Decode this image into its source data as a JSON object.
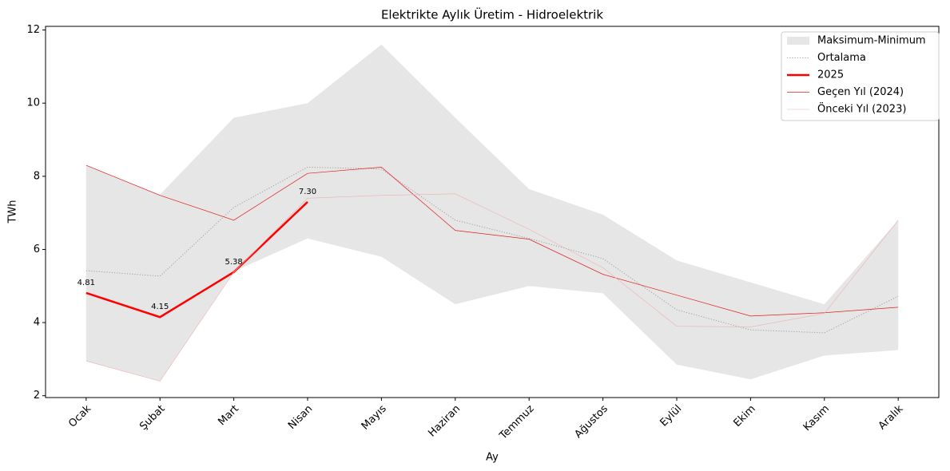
{
  "chart_data": {
    "type": "line",
    "title": "Elektrikte Aylık Üretim - Hidroelektrik",
    "xlabel": "Ay",
    "ylabel": "TWh",
    "categories": [
      "Ocak",
      "Şubat",
      "Mart",
      "Nisan",
      "Mayıs",
      "Haziran",
      "Temmuz",
      "Ağustos",
      "Eylül",
      "Ekim",
      "Kasım",
      "Aralık"
    ],
    "band": {
      "name": "Maksimum-Minimum",
      "color": "#e6e6e6",
      "upper": [
        8.3,
        7.5,
        9.6,
        10.0,
        11.6,
        9.6,
        7.65,
        6.95,
        5.7,
        5.1,
        4.5,
        6.8
      ],
      "lower": [
        2.95,
        2.4,
        5.4,
        6.3,
        5.8,
        4.5,
        5.0,
        4.8,
        2.85,
        2.45,
        3.1,
        3.25
      ]
    },
    "series": [
      {
        "name": "Ortalama",
        "color": "#a0a0a0",
        "linestyle": "dotted",
        "linewidth": 1,
        "values": [
          5.42,
          5.27,
          7.15,
          8.25,
          8.2,
          6.8,
          6.3,
          5.75,
          4.35,
          3.8,
          3.72,
          4.72
        ]
      },
      {
        "name": "2025",
        "color": "#ff0000",
        "linestyle": "solid",
        "linewidth": 2.5,
        "values": [
          4.81,
          4.15,
          5.38,
          7.3,
          null,
          null,
          null,
          null,
          null,
          null,
          null,
          null
        ],
        "value_labels": [
          "4.81",
          "4.15",
          "5.38",
          "7.30",
          null,
          null,
          null,
          null,
          null,
          null,
          null,
          null
        ]
      },
      {
        "name": "Geçen Yıl (2024)",
        "color": "#e02020",
        "linestyle": "solid",
        "linewidth": 0.7,
        "values": [
          8.3,
          7.48,
          6.8,
          8.08,
          8.25,
          6.52,
          6.28,
          5.32,
          4.75,
          4.18,
          4.27,
          4.42
        ]
      },
      {
        "name": "Önceki Yıl (2023)",
        "color": "#f0b0b0",
        "linestyle": "solid",
        "linewidth": 0.6,
        "values": [
          2.95,
          2.4,
          5.38,
          7.4,
          7.48,
          7.52,
          6.55,
          5.5,
          3.9,
          3.88,
          4.25,
          6.8
        ]
      }
    ],
    "ylim": [
      1.95,
      12.1
    ],
    "yticks": [
      2,
      4,
      6,
      8,
      10,
      12
    ],
    "legend": "upper right"
  }
}
